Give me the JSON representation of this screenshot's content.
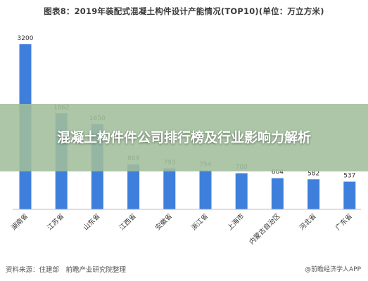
{
  "overlay_title": "混凝土构件件公司排行榜及行业影响力解析",
  "footer": {
    "source": "资料来源：住建部　前瞻产业研究院整理",
    "brand": "@前瞻经济学人APP"
  },
  "chart_data": {
    "type": "bar",
    "title": "图表8：2019年装配式混凝土构件设计产能情况(TOP10)(单位：万立方米)",
    "categories": [
      "湖南省",
      "江苏省",
      "山东省",
      "江西省",
      "安徽省",
      "浙江省",
      "上海市",
      "内蒙古自治区",
      "河北省",
      "广东省"
    ],
    "values": [
      3200,
      1862,
      1650,
      869,
      793,
      754,
      700,
      604,
      582,
      537
    ],
    "data_labels": [
      "3200",
      "1862",
      "1650",
      "869",
      "793",
      "754",
      "700",
      "604",
      "582",
      "537"
    ],
    "ylim": [
      0,
      3400
    ],
    "grid": false,
    "legend": "none",
    "bar_color": "#3f7fdc"
  }
}
